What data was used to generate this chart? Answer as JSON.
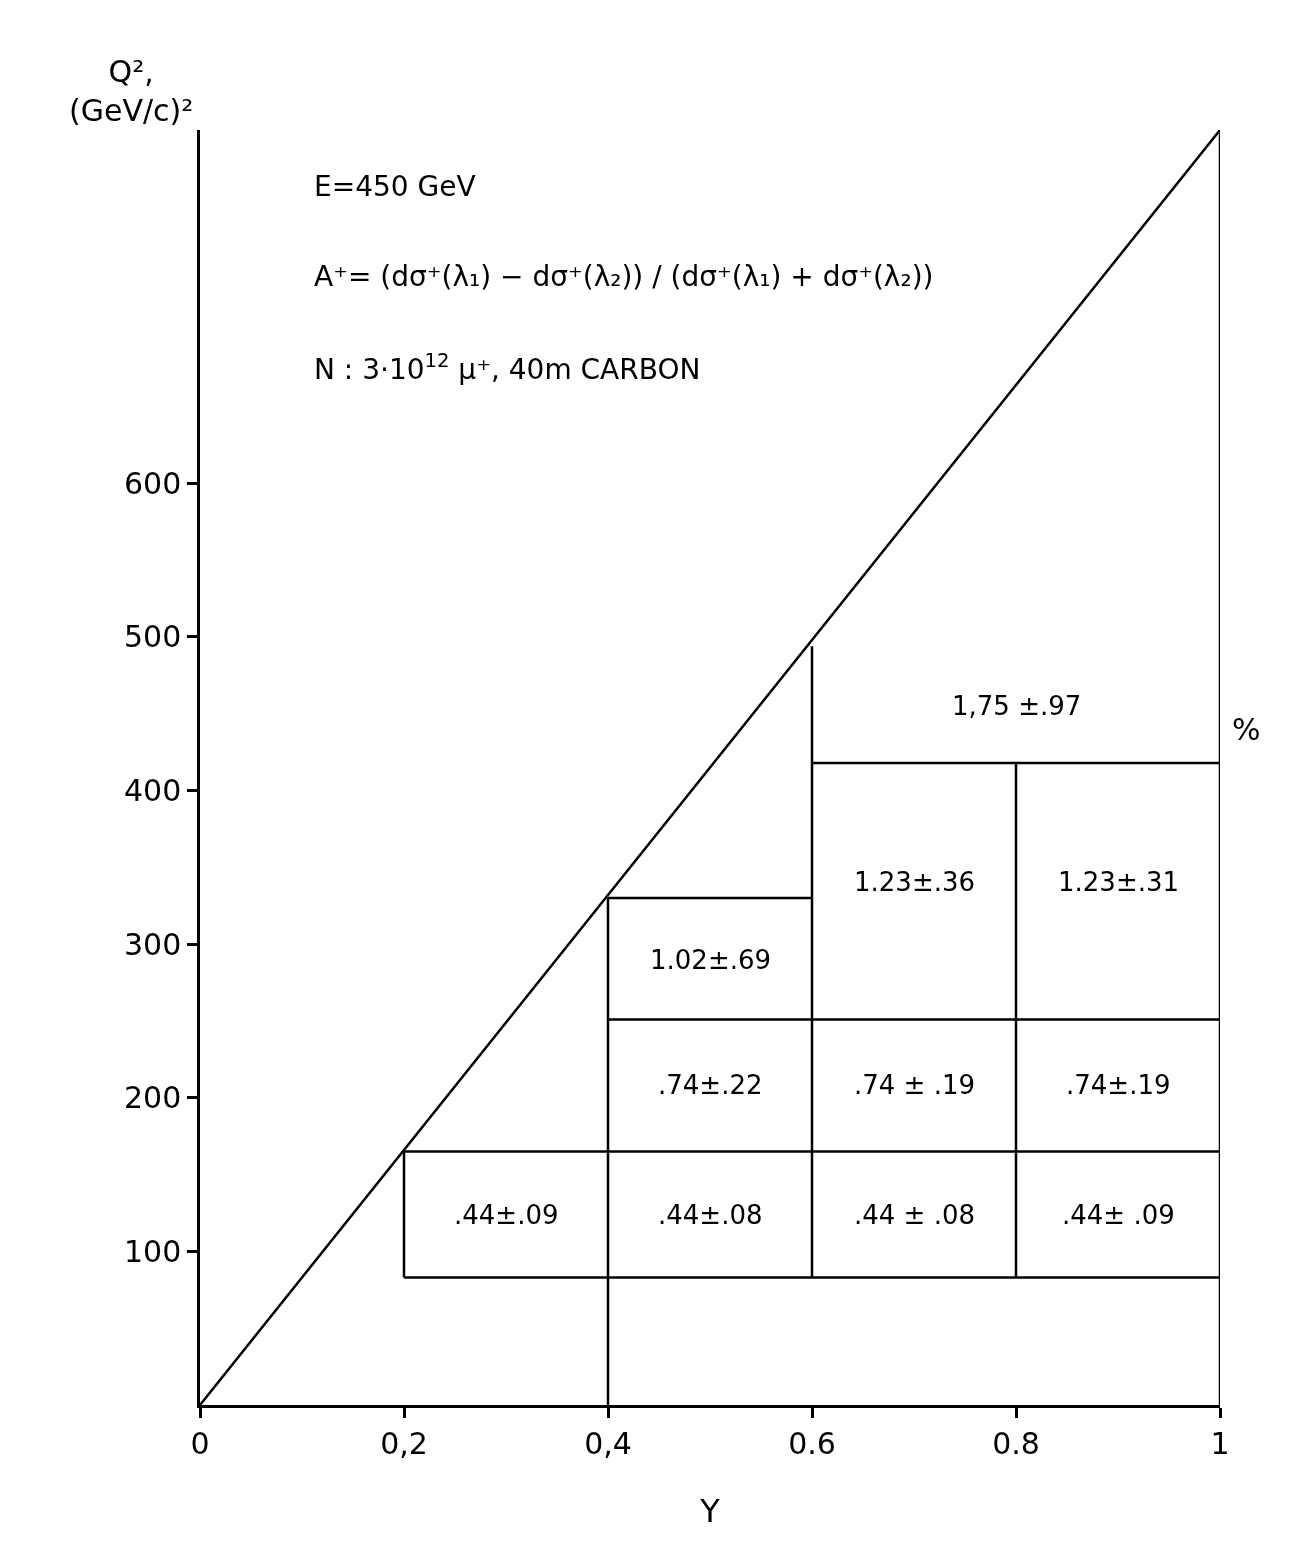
{
  "chart_data": {
    "type": "line",
    "xlabel": "Y",
    "ylabel": "Q², (GeV/c)²",
    "xlim": [
      0,
      1
    ],
    "ylim": [
      0,
      830
    ],
    "xticks": [
      0,
      {
        "value": 0.2,
        "label": "0,2"
      },
      {
        "value": 0.4,
        "label": "0,4"
      },
      0.6,
      0.8,
      1
    ],
    "yticks": [
      100,
      200,
      300,
      400,
      500,
      600
    ],
    "marker": "none",
    "line_style": "solid",
    "series": [
      {
        "color": "#000000",
        "x": [
          0,
          1
        ],
        "values": [
          0,
          830
        ]
      },
      {
        "color": "#000000",
        "x": [
          0.2,
          1
        ],
        "values": [
          83,
          83
        ]
      },
      {
        "color": "#000000",
        "x": [
          0.2,
          1
        ],
        "values": [
          165,
          165
        ]
      },
      {
        "color": "#000000",
        "x": [
          0.4,
          1
        ],
        "values": [
          251,
          251
        ]
      },
      {
        "color": "#000000",
        "x": [
          0.4,
          0.6
        ],
        "values": [
          330,
          330
        ]
      },
      {
        "color": "#000000",
        "x": [
          0.6,
          1
        ],
        "values": [
          418,
          418
        ]
      },
      {
        "color": "#000000",
        "x": [
          0.2,
          0.2
        ],
        "values": [
          83,
          165
        ]
      },
      {
        "color": "#000000",
        "x": [
          0.4,
          0.4
        ],
        "values": [
          0,
          330
        ]
      },
      {
        "color": "#000000",
        "x": [
          0.6,
          0.6
        ],
        "values": [
          83,
          494
        ]
      },
      {
        "color": "#000000",
        "x": [
          0.8,
          0.8
        ],
        "values": [
          83,
          418
        ]
      },
      {
        "color": "#000000",
        "x": [
          1,
          1
        ],
        "values": [
          0,
          830
        ]
      }
    ],
    "annotations": [
      "E=450 GeV",
      "A⁺= (dσ⁺(λ₁) − dσ⁺(λ₂)) / (dσ⁺(λ₁) + dσ⁺(λ₂))",
      "N : 3·10$^{12}$ μ⁺, 40m CARBON",
      "%",
      ".44±.09",
      ".44±.08",
      ".44 ± .08",
      ".44± .09",
      ".74±.22",
      ".74 ± .19",
      ".74±.19",
      "1.02±.69",
      "1.23±.36",
      "1.23±.31",
      "1,75 ±.97"
    ]
  }
}
